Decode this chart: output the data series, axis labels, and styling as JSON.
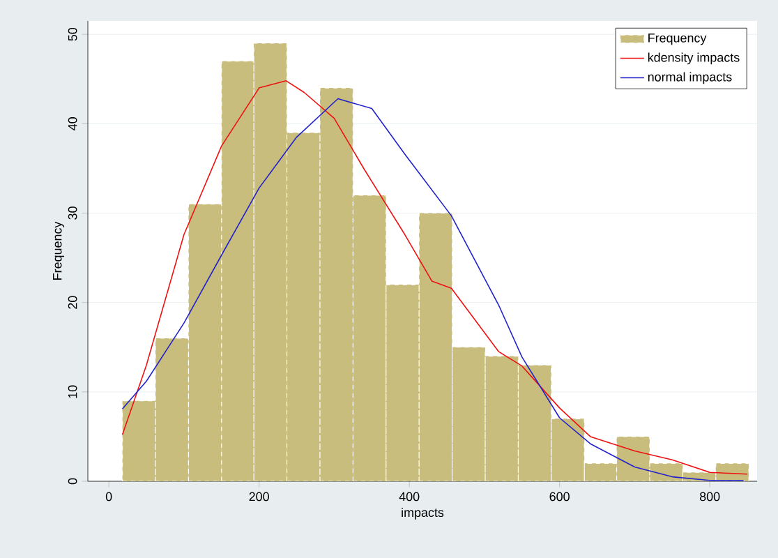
{
  "chart_data": {
    "type": "histogram",
    "xlabel": "impacts",
    "ylabel": "Frequency",
    "bins": [
      18,
      62,
      106,
      150,
      193,
      237,
      281,
      325,
      369,
      413,
      457,
      501,
      545,
      589,
      633,
      676,
      720,
      764,
      808,
      852
    ],
    "series": [
      {
        "name": "Frequency",
        "color": "#c8bd7c",
        "values": [
          9,
          16,
          31,
          47,
          49,
          39,
          44,
          32,
          22,
          30,
          15,
          14,
          13,
          7,
          2,
          5,
          2,
          1,
          2
        ]
      },
      {
        "name": "kdensity impacts",
        "type": "line",
        "color": "#ee1111",
        "x": [
          18,
          50,
          100,
          150,
          200,
          236,
          260,
          300,
          340,
          394,
          430,
          456,
          519,
          550,
          600,
          641,
          700,
          750,
          800,
          850
        ],
        "values": [
          5.2,
          13,
          27.6,
          37.5,
          44,
          44.8,
          43.5,
          40.6,
          34.9,
          27.6,
          22.4,
          21.6,
          14.5,
          12.9,
          8.2,
          5,
          3.4,
          2.4,
          1,
          0.8
        ]
      },
      {
        "name": "normal impacts",
        "type": "line",
        "color": "#2222cc",
        "x": [
          18,
          50,
          100,
          150,
          200,
          250,
          305,
          350,
          394,
          456,
          519,
          550,
          600,
          641,
          700,
          750,
          800,
          845
        ],
        "values": [
          8.1,
          11.2,
          17.7,
          25.3,
          32.8,
          38.5,
          42.8,
          41.7,
          36.6,
          29.7,
          19.7,
          13.9,
          7.1,
          4.2,
          1.6,
          0.5,
          0.1,
          0.1
        ]
      }
    ],
    "xlim": [
      -28,
      863
    ],
    "ylim": [
      0,
      51.5
    ],
    "xticks": [
      0,
      200,
      400,
      600,
      800
    ],
    "yticks": [
      0,
      10,
      20,
      30,
      40,
      50
    ],
    "grid": "y",
    "legend": "top right"
  }
}
